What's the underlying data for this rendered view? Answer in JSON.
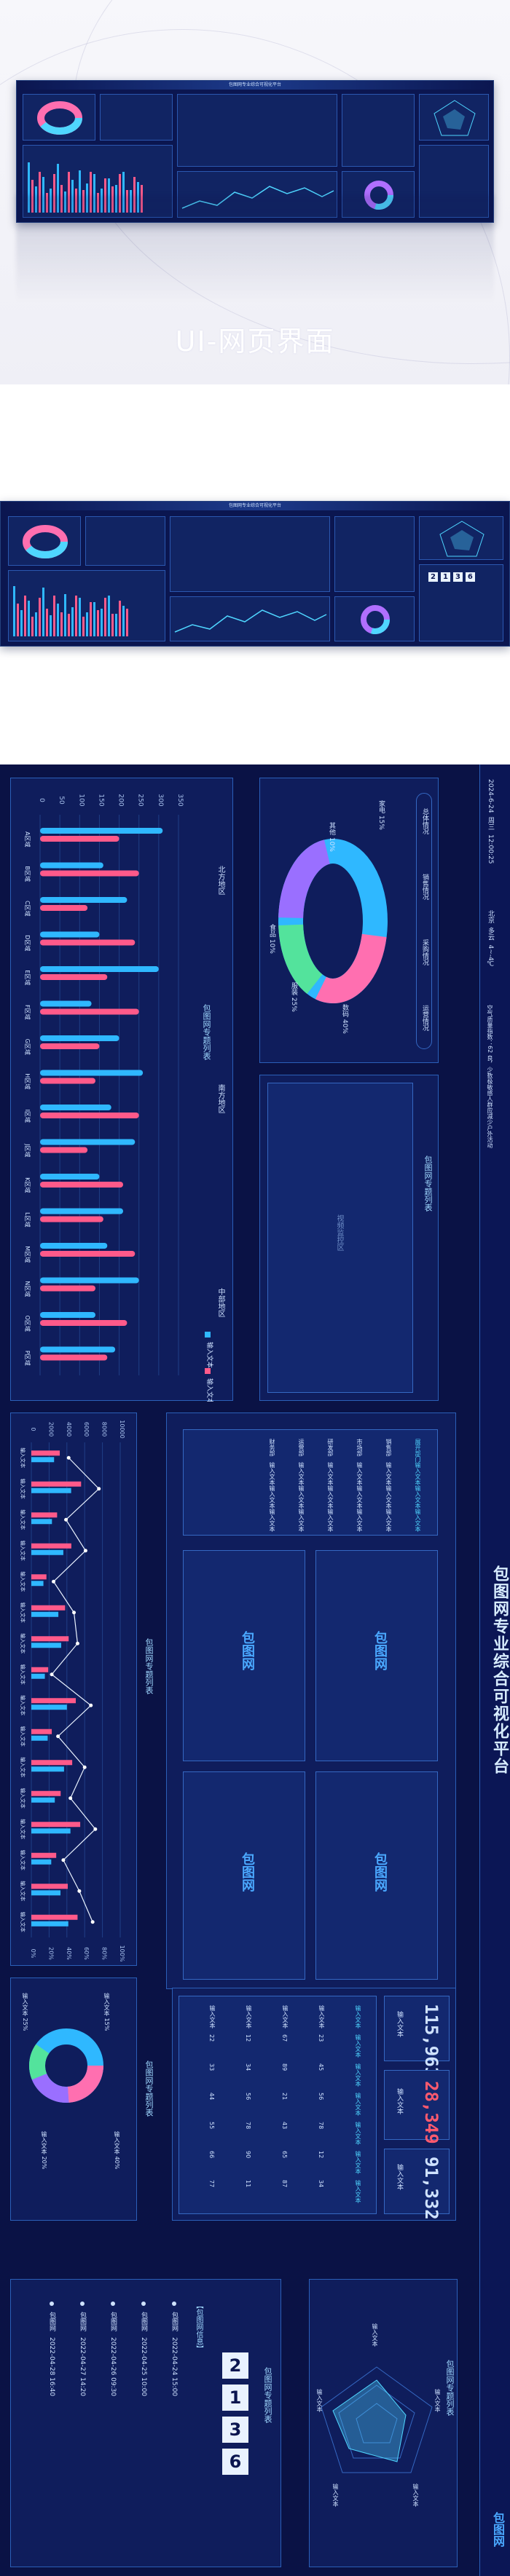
{
  "hero": {
    "caption": "UI-网页界面",
    "preview_title": "包图网专业综合可视化平台"
  },
  "thumbnail": {
    "title": "包图网专业综合可视化平台",
    "clock": [
      "2",
      "1",
      "3",
      "6"
    ]
  },
  "dashboard": {
    "title": "包图网专业综合可视化平台",
    "header": {
      "date": "2024-6-24",
      "weekday": "周三",
      "time": "12:00:25",
      "location": "北京",
      "weather": "多云",
      "temp": "4~-4℃",
      "notice": "空气质量指数：62  良，少数极敏感人群应减少户外活动"
    },
    "panel_top_left": {
      "title": "包图网专题列表",
      "tabs": [
        "北方地区",
        "南方地区",
        "中部地区"
      ],
      "legend": [
        "输入文本",
        "输入文本"
      ],
      "y_ticks": [
        "0",
        "50",
        "100",
        "150",
        "200",
        "250",
        "300",
        "350"
      ],
      "categories": [
        "A区域",
        "B区域",
        "C区域",
        "D区域",
        "E区域",
        "F区域",
        "G区域",
        "H区域",
        "I区域",
        "J区域",
        "K区域",
        "L区域",
        "M区域",
        "N区域",
        "O区域",
        "P区域"
      ]
    },
    "panel_donut": {
      "buttons": [
        "总体情况",
        "销售情况",
        "采购情况",
        "运营情况"
      ],
      "labels": [
        "其他 10%",
        "家电 15%",
        "服装 25%",
        "数码 40%",
        "食品 10%"
      ]
    },
    "panel_video": {
      "title": "包图网专题列表",
      "placeholder": "视频监控区"
    },
    "panel_line": {
      "title": "包图网专题列表",
      "y_ticks": [
        "0",
        "2000",
        "4000",
        "6000",
        "8000",
        "10000"
      ],
      "right_ticks": [
        "0%",
        "20%",
        "40%",
        "60%",
        "80%",
        "100%"
      ],
      "legend": [
        "销售额",
        "同比",
        "环比",
        "目标"
      ],
      "row_label": "输入文本"
    },
    "panel_table_top": {
      "header": [
        "展开部门",
        "输入文本",
        "输入文本",
        "输入文本"
      ],
      "rows": [
        [
          "销售部",
          "输入文本",
          "输入文本",
          "输入文本"
        ],
        [
          "市场部",
          "输入文本",
          "输入文本",
          "输入文本"
        ],
        [
          "研发部",
          "输入文本",
          "输入文本",
          "输入文本"
        ],
        [
          "运营部",
          "输入文本",
          "输入文本",
          "输入文本"
        ],
        [
          "财务部",
          "输入文本",
          "输入文本",
          "输入文本"
        ]
      ]
    },
    "panel_grid": {
      "logo": "包图网",
      "cells": [
        "包图网",
        "包图网",
        "包图网",
        "包图网"
      ]
    },
    "panel_ring": {
      "title": "包图网专题列表",
      "labels": [
        "输入文本 25%",
        "输入文本 20%",
        "输入文本 15%",
        "输入文本 40%"
      ]
    },
    "panel_stats": {
      "numbers": [
        {
          "value": "115,963",
          "label": "输入文本",
          "color": "#4fd6ff"
        },
        {
          "value": "28,349",
          "label": "输入文本",
          "color": "#ff5a6e"
        },
        {
          "value": "91,332",
          "label": "输入文本",
          "color": "#4fd6ff"
        }
      ],
      "table_header": [
        "输入文本",
        "输入文本",
        "输入文本",
        "输入文本",
        "输入文本",
        "输入文本",
        "输入文本"
      ],
      "table_rows": [
        [
          "输入文本",
          "23",
          "45",
          "56",
          "78",
          "12",
          "34"
        ],
        [
          "输入文本",
          "67",
          "89",
          "21",
          "43",
          "65",
          "87"
        ],
        [
          "输入文本",
          "12",
          "34",
          "56",
          "78",
          "90",
          "11"
        ],
        [
          "输入文本",
          "22",
          "33",
          "44",
          "55",
          "66",
          "77"
        ]
      ]
    },
    "panel_clock": {
      "title": "包图网专题列表",
      "digits": [
        "2",
        "1",
        "3",
        "6"
      ],
      "subtitle": "【包图网信息】",
      "events": [
        {
          "name": "包图网",
          "date": "2022-04-24 15:00"
        },
        {
          "name": "包图网",
          "date": "2022-04-25 10:00"
        },
        {
          "name": "包图网",
          "date": "2022-04-26 09:30"
        },
        {
          "name": "包图网",
          "date": "2022-04-27 14:20"
        },
        {
          "name": "包图网",
          "date": "2022-04-28 16:40"
        }
      ]
    },
    "panel_radar": {
      "title": "包图网专题列表",
      "axes": [
        "输入文本",
        "输入文本",
        "输入文本",
        "输入文本",
        "输入文本"
      ]
    },
    "brand": "包图网"
  },
  "chart_data": {
    "type": "bar",
    "categories": [
      "A区域",
      "B区域",
      "C区域",
      "D区域",
      "E区域",
      "F区域",
      "G区域",
      "H区域",
      "I区域",
      "J区域",
      "K区域",
      "L区域",
      "M区域",
      "N区域",
      "O区域",
      "P区域"
    ],
    "series": [
      {
        "name": "输入文本",
        "values": [
          310,
          160,
          220,
          150,
          300,
          130,
          200,
          260,
          180,
          240,
          150,
          210,
          170,
          250,
          140,
          190
        ]
      },
      {
        "name": "输入文本",
        "values": [
          200,
          250,
          120,
          240,
          170,
          250,
          150,
          140,
          250,
          120,
          210,
          160,
          240,
          140,
          220,
          170
        ]
      }
    ],
    "ylim": [
      0,
      350
    ],
    "colors": [
      "#2fb8ff",
      "#ff5a8a",
      "#53e39c"
    ]
  }
}
